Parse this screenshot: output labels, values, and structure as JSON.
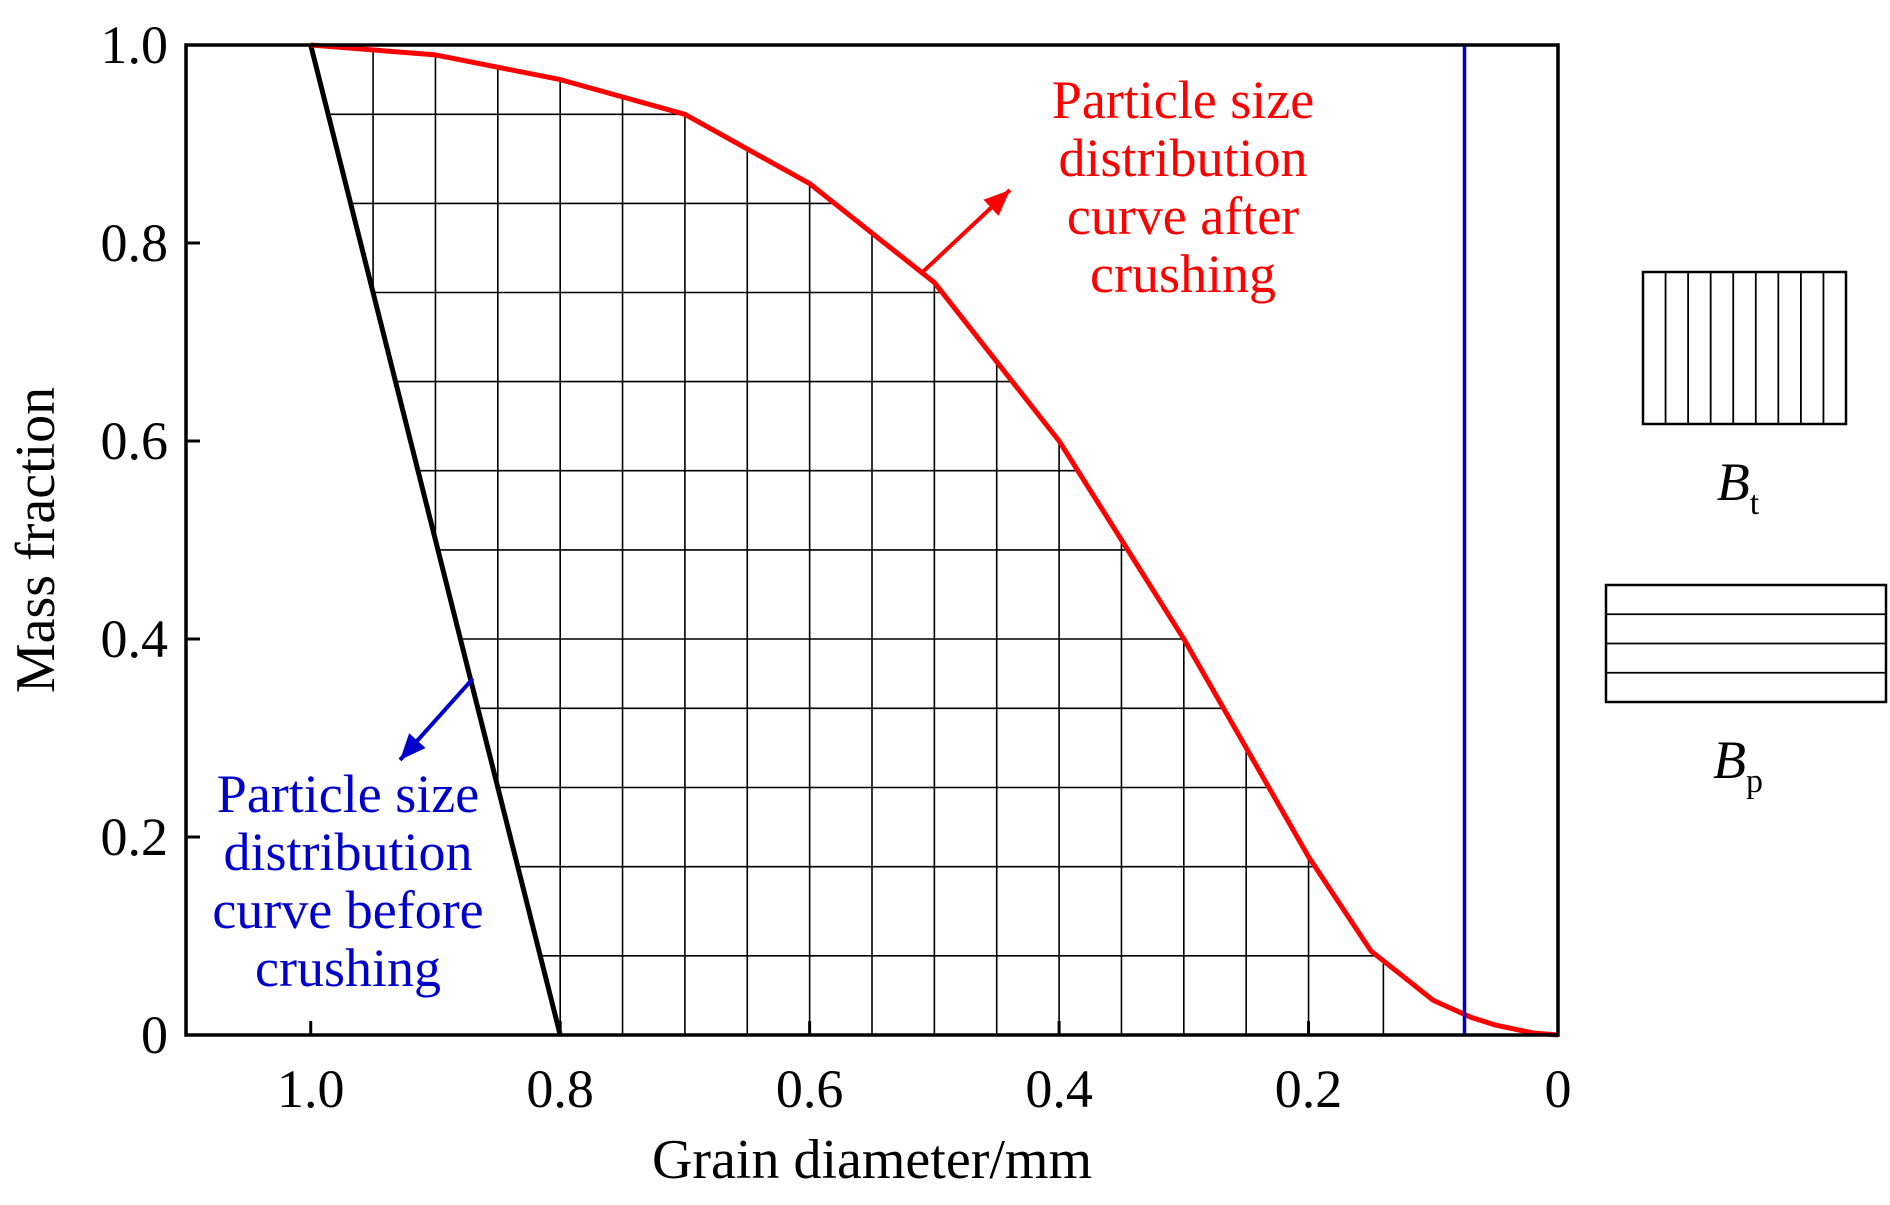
{
  "chart_data": {
    "type": "line",
    "xlabel": "Grain diameter/mm",
    "ylabel": "Mass fraction",
    "xlim": [
      1.1,
      0
    ],
    "ylim": [
      0,
      1.0
    ],
    "x_reversed": true,
    "x_ticks": [
      "1.0",
      "0.8",
      "0.6",
      "0.4",
      "0.2",
      "0"
    ],
    "x_tick_values": [
      1.0,
      0.8,
      0.6,
      0.4,
      0.2,
      0
    ],
    "y_ticks": [
      "0",
      "0.2",
      "0.4",
      "0.6",
      "0.8",
      "1.0"
    ],
    "y_tick_values": [
      0,
      0.2,
      0.4,
      0.6,
      0.8,
      1.0
    ],
    "grid": false,
    "series": [
      {
        "color": "#000000",
        "x": [
          1.0,
          0.8
        ],
        "y": [
          1.0,
          0.0
        ]
      },
      {
        "color": "#ff0000",
        "x": [
          1.0,
          0.9,
          0.8,
          0.7,
          0.6,
          0.5,
          0.4,
          0.35,
          0.3,
          0.25,
          0.2,
          0.15,
          0.1,
          0.07,
          0.05,
          0.02,
          0.0
        ],
        "y": [
          1.0,
          0.99,
          0.965,
          0.93,
          0.86,
          0.76,
          0.6,
          0.5,
          0.4,
          0.29,
          0.18,
          0.085,
          0.035,
          0.018,
          0.01,
          0.002,
          0.0
        ]
      },
      {
        "color": "#0000cc",
        "x": [
          0.075,
          0.075
        ],
        "y": [
          0.0,
          1.0
        ]
      }
    ],
    "annotations": [
      {
        "text": [
          "Particle size",
          "distribution",
          "curve after",
          "crushing"
        ],
        "color": "#ff0000",
        "arrow_to": [
          0.51,
          0.77
        ]
      },
      {
        "text": [
          "Particle size",
          "distribution",
          "curve before",
          "crushing"
        ],
        "color": "#0000cc",
        "arrow_to": [
          0.87,
          0.36
        ]
      }
    ],
    "hatch_vertical_x": [
      0.95,
      0.9,
      0.85,
      0.8,
      0.75,
      0.7,
      0.65,
      0.6,
      0.55,
      0.5,
      0.45,
      0.4,
      0.35,
      0.3,
      0.25,
      0.2,
      0.14
    ],
    "hatch_horizontal_y": [
      0.93,
      0.84,
      0.75,
      0.66,
      0.57,
      0.49,
      0.4,
      0.33,
      0.25,
      0.17,
      0.08
    ],
    "legend": [
      {
        "label": "B",
        "subscript": "t",
        "pattern": "vertical"
      },
      {
        "label": "B",
        "subscript": "p",
        "pattern": "horizontal"
      }
    ]
  }
}
